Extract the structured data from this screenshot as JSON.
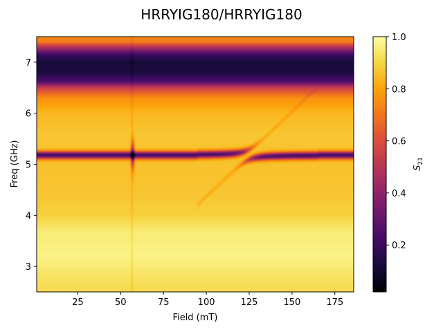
{
  "chart_data": {
    "type": "heatmap",
    "title": "HRRYIG180/HRRYIG180",
    "xlabel": "Field (mT)",
    "ylabel": "Freq (GHz)",
    "xlim": [
      1,
      186
    ],
    "ylim": [
      2.5,
      7.5
    ],
    "x_ticks": [
      25,
      50,
      75,
      100,
      125,
      150,
      175
    ],
    "y_ticks": [
      3,
      4,
      5,
      6,
      7
    ],
    "colorbar": {
      "label": "S21",
      "label_base": "S",
      "label_sub": "21",
      "colormap": "inferno",
      "range": [
        0.02,
        1.0
      ],
      "ticks": [
        "0.2",
        "0.4",
        "0.6",
        "0.8",
        "1.0"
      ]
    },
    "background_profile": [
      {
        "f": 2.5,
        "s": 0.91
      },
      {
        "f": 2.8,
        "s": 0.93
      },
      {
        "f": 3.2,
        "s": 0.97
      },
      {
        "f": 3.7,
        "s": 0.95
      },
      {
        "f": 4.0,
        "s": 0.89
      },
      {
        "f": 4.4,
        "s": 0.87
      },
      {
        "f": 4.8,
        "s": 0.86
      },
      {
        "f": 5.6,
        "s": 0.87
      },
      {
        "f": 6.0,
        "s": 0.84
      },
      {
        "f": 6.3,
        "s": 0.76
      },
      {
        "f": 6.5,
        "s": 0.55
      },
      {
        "f": 6.62,
        "s": 0.25
      },
      {
        "f": 6.8,
        "s": 0.13
      },
      {
        "f": 7.0,
        "s": 0.12
      },
      {
        "f": 7.15,
        "s": 0.2
      },
      {
        "f": 7.3,
        "s": 0.5
      },
      {
        "f": 7.4,
        "s": 0.72
      },
      {
        "f": 7.5,
        "s": 0.74
      }
    ],
    "resonator_mode": {
      "freq_ghz": 5.18,
      "width_ghz": 0.05,
      "min_s21": 0.35
    },
    "magnon_mode": {
      "field_mT": [
        100,
        160
      ],
      "freq_ghz": [
        4.38,
        6.35
      ],
      "min_s21": 0.6
    },
    "anticrossing": {
      "center_field_mT": 130,
      "coupling_ghz": 0.1
    },
    "feature_near_57mT": {
      "field_mT": 57,
      "freq_range_ghz": [
        4.6,
        5.7
      ]
    }
  }
}
